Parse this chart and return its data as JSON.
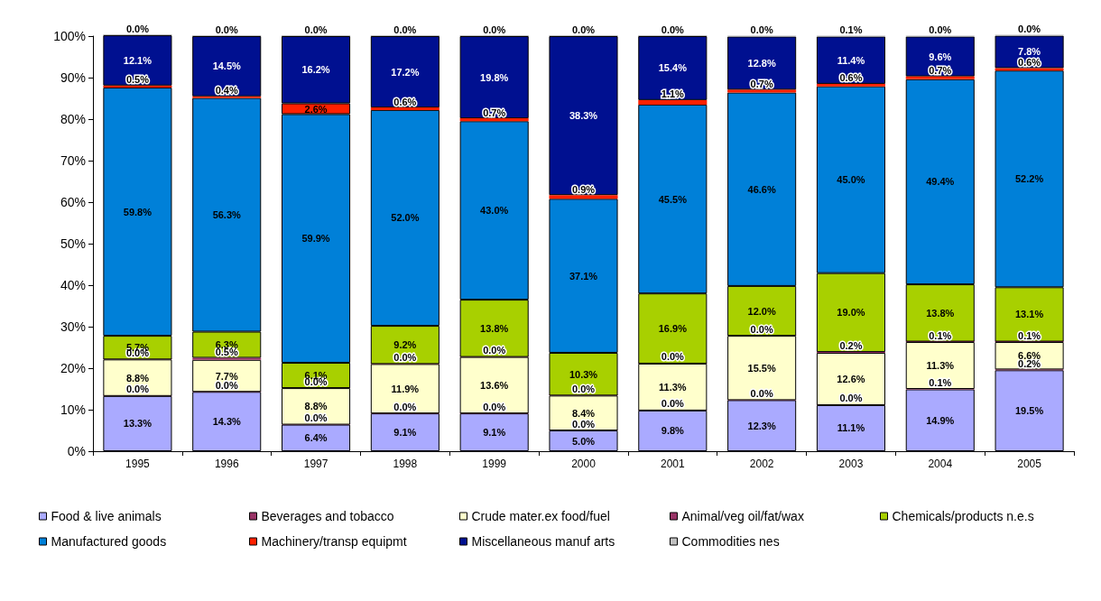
{
  "chart_data": {
    "type": "bar",
    "stacked": true,
    "categories": [
      "1995",
      "1996",
      "1997",
      "1998",
      "1999",
      "2000",
      "2001",
      "2002",
      "2003",
      "2004",
      "2005"
    ],
    "ylim": [
      0,
      100
    ],
    "yticks": [
      {
        "value": 0,
        "label": "0%"
      },
      {
        "value": 10,
        "label": "10%"
      },
      {
        "value": 20,
        "label": "20%"
      },
      {
        "value": 30,
        "label": "30%"
      },
      {
        "value": 40,
        "label": "40%"
      },
      {
        "value": 50,
        "label": "50%"
      },
      {
        "value": 60,
        "label": "60%"
      },
      {
        "value": 70,
        "label": "70%"
      },
      {
        "value": 80,
        "label": "80%"
      },
      {
        "value": 90,
        "label": "90%"
      },
      {
        "value": 100,
        "label": "100%"
      }
    ],
    "grid": false,
    "legend": "bottom",
    "series": [
      {
        "name": "Food & live animals",
        "color": "#aaaaff",
        "values": [
          13.3,
          14.3,
          6.4,
          9.1,
          9.1,
          5.0,
          9.8,
          12.3,
          11.1,
          14.9,
          19.5
        ],
        "value_labels": [
          "13.3%",
          "14.3%",
          "6.4%",
          "9.1%",
          "9.1%",
          "5.0%",
          "9.8%",
          "12.3%",
          "11.1%",
          "14.9%",
          "19.5%"
        ]
      },
      {
        "name": "Beverages and tobacco",
        "color": "#993366",
        "values": [
          0.0,
          0.0,
          0.0,
          0.0,
          0.0,
          0.0,
          0.0,
          0.0,
          0.0,
          0.1,
          0.2
        ],
        "value_labels": [
          "0.0%",
          "0.0%",
          "0.0%",
          "0.0%",
          "0.0%",
          "0.0%",
          "0.0%",
          "0.0%",
          "0.0%",
          "0.1%",
          "0.2%"
        ]
      },
      {
        "name": "Crude mater.ex food/fuel",
        "color": "#ffffcc",
        "values": [
          8.8,
          7.7,
          8.8,
          11.9,
          13.6,
          8.4,
          11.3,
          15.5,
          12.6,
          11.3,
          6.6
        ],
        "value_labels": [
          "8.8%",
          "7.7%",
          "8.8%",
          "11.9%",
          "13.6%",
          "8.4%",
          "11.3%",
          "15.5%",
          "12.6%",
          "11.3%",
          "6.6%"
        ]
      },
      {
        "name": "Animal/veg oil/fat/wax",
        "color": "#993366",
        "values": [
          0.0,
          0.5,
          0.0,
          0.0,
          0.0,
          0.0,
          0.0,
          0.0,
          0.2,
          0.1,
          0.1
        ],
        "value_labels": [
          "0.0%",
          "0.5%",
          "0.0%",
          "0.0%",
          "0.0%",
          "0.0%",
          "0.0%",
          "0.0%",
          "0.2%",
          "0.1%",
          "0.1%"
        ]
      },
      {
        "name": "Chemicals/products n.e.s",
        "color": "#a8d000",
        "values": [
          5.7,
          6.3,
          6.1,
          9.2,
          13.8,
          10.3,
          16.9,
          12.0,
          19.0,
          13.8,
          13.1
        ],
        "value_labels": [
          "5.7%",
          "6.3%",
          "6.1%",
          "9.2%",
          "13.8%",
          "10.3%",
          "16.9%",
          "12.0%",
          "19.0%",
          "13.8%",
          "13.1%"
        ]
      },
      {
        "name": "Manufactured goods",
        "color": "#0080d8",
        "values": [
          59.8,
          56.3,
          59.9,
          52.0,
          43.0,
          37.1,
          45.5,
          46.6,
          45.0,
          49.4,
          52.2
        ],
        "value_labels": [
          "59.8%",
          "56.3%",
          "59.9%",
          "52.0%",
          "43.0%",
          "37.1%",
          "45.5%",
          "46.6%",
          "45.0%",
          "49.4%",
          "52.2%"
        ]
      },
      {
        "name": "Machinery/transp equipmt",
        "color": "#ff2000",
        "values": [
          0.5,
          0.4,
          2.6,
          0.6,
          0.7,
          0.9,
          1.1,
          0.7,
          0.6,
          0.7,
          0.6
        ],
        "value_labels": [
          "0.5%",
          "0.4%",
          "2.6%",
          "0.6%",
          "0.7%",
          "0.9%",
          "1.1%",
          "0.7%",
          "0.6%",
          "0.7%",
          "0.6%"
        ]
      },
      {
        "name": "Miscellaneous manuf arts",
        "color": "#001090",
        "values": [
          12.1,
          14.5,
          16.2,
          17.2,
          19.8,
          38.3,
          15.4,
          12.8,
          11.4,
          9.6,
          7.8
        ],
        "value_labels": [
          "12.1%",
          "14.5%",
          "16.2%",
          "17.2%",
          "19.8%",
          "38.3%",
          "15.4%",
          "12.8%",
          "11.4%",
          "9.6%",
          "7.8%"
        ]
      },
      {
        "name": "Commodities nes",
        "color": "#c0c0c0",
        "values": [
          0.0,
          0.0,
          0.0,
          0.0,
          0.0,
          0.0,
          0.0,
          0.0,
          0.1,
          0.0,
          0.0
        ],
        "value_labels": [
          "0.0%",
          "0.0%",
          "0.0%",
          "0.0%",
          "0.0%",
          "0.0%",
          "0.0%",
          "0.0%",
          "0.1%",
          "0.0%",
          "0.0%"
        ]
      }
    ]
  }
}
